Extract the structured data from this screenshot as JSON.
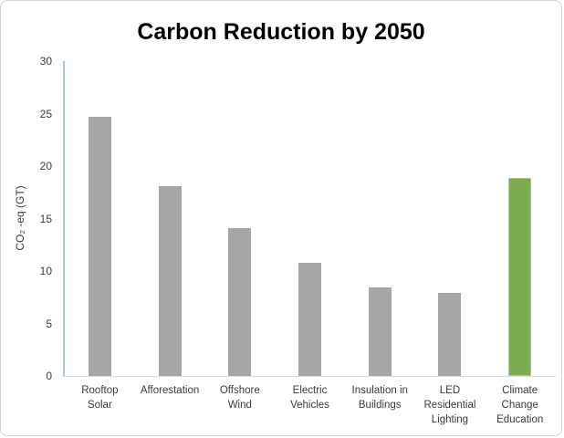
{
  "chart_data": {
    "type": "bar",
    "title": "Carbon Reduction by 2050",
    "xlabel": "",
    "ylabel": "CO₂ -eq (GT)",
    "ylim": [
      0,
      30
    ],
    "yticks": [
      0,
      5,
      10,
      15,
      20,
      25,
      30
    ],
    "grid": false,
    "legend": false,
    "categories": [
      "Rooftop Solar",
      "Afforestation",
      "Offshore Wind",
      "Electric Vehicles",
      "Insulation in Buildings",
      "LED Residential Lighting",
      "Climate Change Education"
    ],
    "category_lines": [
      [
        "Rooftop",
        "Solar"
      ],
      [
        "Afforestation"
      ],
      [
        "Offshore",
        "Wind"
      ],
      [
        "Electric",
        "Vehicles"
      ],
      [
        "Insulation in",
        "Buildings"
      ],
      [
        "LED",
        "Residential",
        "Lighting"
      ],
      [
        "Climate",
        "Change",
        "Education"
      ]
    ],
    "values": [
      24.7,
      18.1,
      14.1,
      10.8,
      8.4,
      7.9,
      18.9
    ],
    "bar_colors": [
      "#a6a6a6",
      "#a6a6a6",
      "#a6a6a6",
      "#a6a6a6",
      "#a6a6a6",
      "#a6a6a6",
      "#7fac51"
    ],
    "highlight_index": 6,
    "highlight_border_color": "#9dc3e6",
    "colors": {
      "bar_gray": "#a6a6a6",
      "bar_green": "#7fac51",
      "y_axis_line": "#a9c4e4",
      "baseline": "#dcdcdc",
      "axis_text": "#3b3b3b",
      "title_text": "#000000",
      "card_border": "#d4d4d4",
      "background": "#ffffff"
    }
  }
}
